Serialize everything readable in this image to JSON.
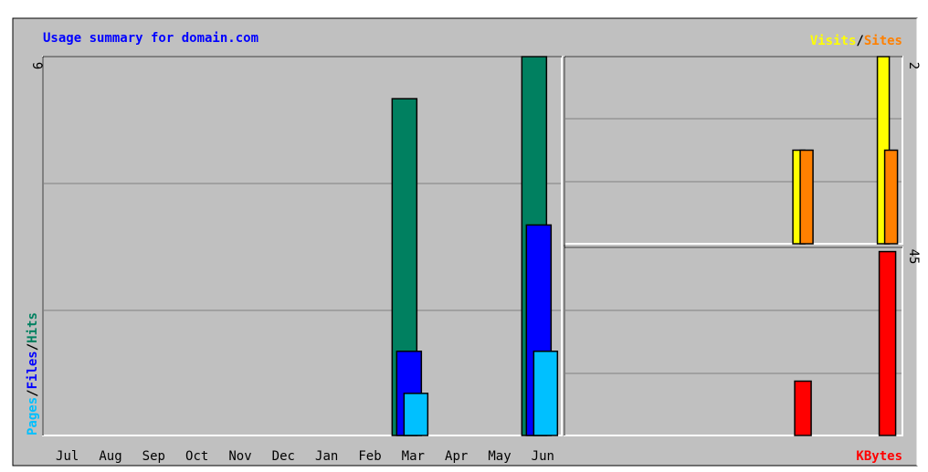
{
  "chart_data": [
    {
      "type": "bar",
      "title": "Usage summary for domain.com",
      "title_color": "#0000ff",
      "legend_separator": "/",
      "categories": [
        "Jul",
        "Aug",
        "Sep",
        "Oct",
        "Nov",
        "Dec",
        "Jan",
        "Feb",
        "Mar",
        "Apr",
        "May",
        "Jun"
      ],
      "ylim": [
        0,
        9
      ],
      "yticks": [
        9
      ],
      "series": [
        {
          "name": "Hits",
          "color": "#008060",
          "values": [
            0,
            0,
            0,
            0,
            0,
            0,
            0,
            0,
            8,
            0,
            0,
            9
          ]
        },
        {
          "name": "Files",
          "color": "#0000ff",
          "values": [
            0,
            0,
            0,
            0,
            0,
            0,
            0,
            0,
            2,
            0,
            0,
            5
          ]
        },
        {
          "name": "Pages",
          "color": "#00c0ff",
          "values": [
            0,
            0,
            0,
            0,
            0,
            0,
            0,
            0,
            1,
            0,
            0,
            2
          ]
        }
      ]
    },
    {
      "type": "bar",
      "ylim": [
        0,
        2
      ],
      "yticks": [
        2
      ],
      "series": [
        {
          "name": "Visits",
          "color": "#ffff00",
          "values": [
            0,
            0,
            0,
            0,
            0,
            0,
            0,
            0,
            1,
            0,
            0,
            2
          ]
        },
        {
          "name": "Sites",
          "color": "#ff8000",
          "values": [
            0,
            0,
            0,
            0,
            0,
            0,
            0,
            0,
            1,
            0,
            0,
            1
          ]
        }
      ]
    },
    {
      "type": "bar",
      "ylim": [
        0,
        45
      ],
      "yticks": [
        45
      ],
      "series": [
        {
          "name": "KBytes",
          "color": "#ff0000",
          "values": [
            0,
            0,
            0,
            0,
            0,
            0,
            0,
            0,
            13,
            0,
            0,
            44
          ]
        }
      ]
    }
  ]
}
